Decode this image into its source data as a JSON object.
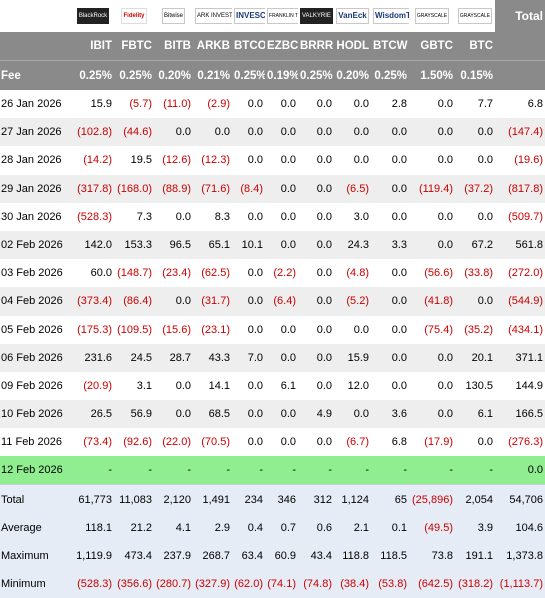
{
  "logos": [
    {
      "name": "blackrock-logo",
      "text": "BlackRock",
      "style": "dark"
    },
    {
      "name": "fidelity-logo",
      "text": "Fidelity",
      "style": "red"
    },
    {
      "name": "bitwise-logo",
      "text": "Bitwise",
      "style": "plain"
    },
    {
      "name": "ark-logo",
      "text": "ARK INVEST",
      "style": "plain"
    },
    {
      "name": "invesco-logo",
      "text": "INVESCO",
      "style": "navy"
    },
    {
      "name": "franklin-logo",
      "text": "FRANKLIN TEMPLETON",
      "style": "sm"
    },
    {
      "name": "valkyrie-logo",
      "text": "VALKYRIE",
      "style": "dark"
    },
    {
      "name": "vaneck-logo",
      "text": "VanEck",
      "style": "navy"
    },
    {
      "name": "wisdomtree-logo",
      "text": "WisdomTree",
      "style": "navy"
    },
    {
      "name": "grayscale-gbtc-logo",
      "text": "GRAYSCALE",
      "style": "sm"
    },
    {
      "name": "grayscale-btc-logo",
      "text": "GRAYSCALE",
      "style": "sm"
    }
  ],
  "header": {
    "total_label": "Total",
    "fee_label": "Fee",
    "tickers": [
      "IBIT",
      "FBTC",
      "BITB",
      "ARKB",
      "BTCO",
      "EZBC",
      "BRRR",
      "HODL",
      "BTCW",
      "GBTC",
      "BTC"
    ],
    "fees": [
      "0.25%",
      "0.25%",
      "0.20%",
      "0.21%",
      "0.25%",
      "0.19%",
      "0.25%",
      "0.20%",
      "0.25%",
      "1.50%",
      "0.15%"
    ]
  },
  "rows": [
    {
      "date": "26 Jan 2026",
      "values": [
        "15.9",
        "(5.7)",
        "(11.0)",
        "(2.9)",
        "0.0",
        "0.0",
        "0.0",
        "0.0",
        "2.8",
        "0.0",
        "7.7"
      ],
      "total": "6.8"
    },
    {
      "date": "27 Jan 2026",
      "values": [
        "(102.8)",
        "(44.6)",
        "0.0",
        "0.0",
        "0.0",
        "0.0",
        "0.0",
        "0.0",
        "0.0",
        "0.0",
        "0.0"
      ],
      "total": "(147.4)"
    },
    {
      "date": "28 Jan 2026",
      "values": [
        "(14.2)",
        "19.5",
        "(12.6)",
        "(12.3)",
        "0.0",
        "0.0",
        "0.0",
        "0.0",
        "0.0",
        "0.0",
        "0.0"
      ],
      "total": "(19.6)"
    },
    {
      "date": "29 Jan 2026",
      "values": [
        "(317.8)",
        "(168.0)",
        "(88.9)",
        "(71.6)",
        "(8.4)",
        "0.0",
        "0.0",
        "(6.5)",
        "0.0",
        "(119.4)",
        "(37.2)"
      ],
      "total": "(817.8)"
    },
    {
      "date": "30 Jan 2026",
      "values": [
        "(528.3)",
        "7.3",
        "0.0",
        "8.3",
        "0.0",
        "0.0",
        "0.0",
        "3.0",
        "0.0",
        "0.0",
        "0.0"
      ],
      "total": "(509.7)"
    },
    {
      "date": "02 Feb 2026",
      "values": [
        "142.0",
        "153.3",
        "96.5",
        "65.1",
        "10.1",
        "0.0",
        "0.0",
        "24.3",
        "3.3",
        "0.0",
        "67.2"
      ],
      "total": "561.8"
    },
    {
      "date": "03 Feb 2026",
      "values": [
        "60.0",
        "(148.7)",
        "(23.4)",
        "(62.5)",
        "0.0",
        "(2.2)",
        "0.0",
        "(4.8)",
        "0.0",
        "(56.6)",
        "(33.8)"
      ],
      "total": "(272.0)"
    },
    {
      "date": "04 Feb 2026",
      "values": [
        "(373.4)",
        "(86.4)",
        "0.0",
        "(31.7)",
        "0.0",
        "(6.4)",
        "0.0",
        "(5.2)",
        "0.0",
        "(41.8)",
        "0.0"
      ],
      "total": "(544.9)"
    },
    {
      "date": "05 Feb 2026",
      "values": [
        "(175.3)",
        "(109.5)",
        "(15.6)",
        "(23.1)",
        "0.0",
        "0.0",
        "0.0",
        "0.0",
        "0.0",
        "(75.4)",
        "(35.2)"
      ],
      "total": "(434.1)"
    },
    {
      "date": "06 Feb 2026",
      "values": [
        "231.6",
        "24.5",
        "28.7",
        "43.3",
        "7.0",
        "0.0",
        "0.0",
        "15.9",
        "0.0",
        "0.0",
        "20.1"
      ],
      "total": "371.1"
    },
    {
      "date": "09 Feb 2026",
      "values": [
        "(20.9)",
        "3.1",
        "0.0",
        "14.1",
        "0.0",
        "6.1",
        "0.0",
        "12.0",
        "0.0",
        "0.0",
        "130.5"
      ],
      "total": "144.9"
    },
    {
      "date": "10 Feb 2026",
      "values": [
        "26.5",
        "56.9",
        "0.0",
        "68.5",
        "0.0",
        "0.0",
        "4.9",
        "0.0",
        "3.6",
        "0.0",
        "6.1"
      ],
      "total": "166.5"
    },
    {
      "date": "11 Feb 2026",
      "values": [
        "(73.4)",
        "(92.6)",
        "(22.0)",
        "(70.5)",
        "0.0",
        "0.0",
        "0.0",
        "(6.7)",
        "6.8",
        "(17.9)",
        "0.0"
      ],
      "total": "(276.3)"
    }
  ],
  "today": {
    "date": "12 Feb 2026",
    "values": [
      "-",
      "-",
      "-",
      "-",
      "-",
      "-",
      "-",
      "-",
      "-",
      "-",
      "-"
    ],
    "total": "0.0"
  },
  "summary": [
    {
      "label": "Total",
      "values": [
        "61,773",
        "11,083",
        "2,120",
        "1,491",
        "234",
        "346",
        "312",
        "1,124",
        "65",
        "(25,896)",
        "2,054"
      ],
      "total": "54,706"
    },
    {
      "label": "Average",
      "values": [
        "118.1",
        "21.2",
        "4.1",
        "2.9",
        "0.4",
        "0.7",
        "0.6",
        "2.1",
        "0.1",
        "(49.5)",
        "3.9"
      ],
      "total": "104.6"
    },
    {
      "label": "Maximum",
      "values": [
        "1,119.9",
        "473.4",
        "237.9",
        "268.7",
        "63.4",
        "60.9",
        "43.4",
        "118.8",
        "118.5",
        "73.8",
        "191.1"
      ],
      "total": "1,373.8"
    },
    {
      "label": "Minimum",
      "values": [
        "(528.3)",
        "(356.6)",
        "(280.7)",
        "(327.9)",
        "(62.0)",
        "(74.1)",
        "(74.8)",
        "(38.4)",
        "(53.8)",
        "(642.5)",
        "(318.2)"
      ],
      "total": "(1,113.7)"
    }
  ],
  "colors": {
    "header_bg": "#8a8a8a",
    "negative": "#cc0000",
    "today_bg": "#90ee90",
    "summary_bg": "#e6ecf6"
  }
}
